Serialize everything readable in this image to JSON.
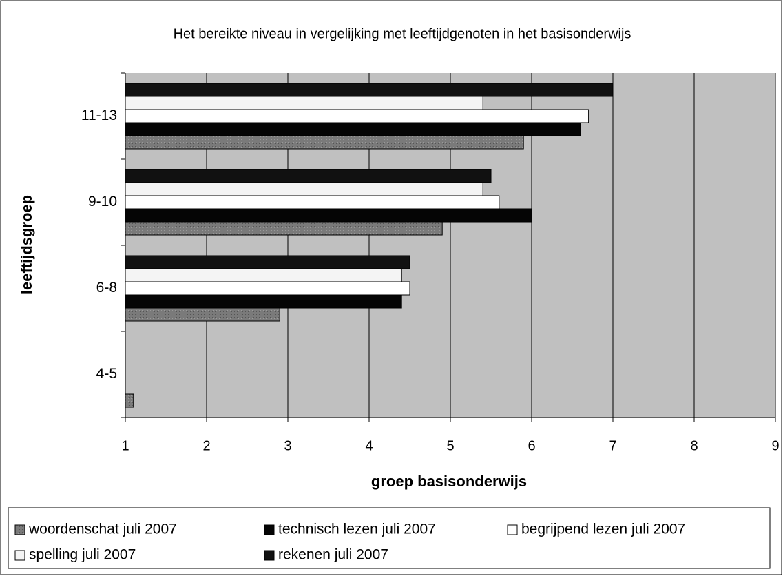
{
  "chart_data": {
    "type": "hbar",
    "title": "Het bereikte niveau in vergelijking met leeftijdgenoten in het basisonderwijs",
    "xlabel": "groep basisonderwijs",
    "ylabel": "leeftijdsgroep",
    "categories": [
      "4-5",
      "6-8",
      "9-10",
      "11-13"
    ],
    "series": [
      {
        "name": "woordenschat juli 2007",
        "color": "#7a7a7a",
        "values": [
          1.1,
          2.9,
          4.9,
          5.9
        ]
      },
      {
        "name": "technisch lezen juli 2007",
        "color": "#050505",
        "values": [
          null,
          4.4,
          6.0,
          6.6
        ]
      },
      {
        "name": "begrijpend lezen juli 2007",
        "color": "#ffffff",
        "values": [
          null,
          4.5,
          5.6,
          6.7
        ]
      },
      {
        "name": "spelling juli 2007",
        "color": "#f4f4f4",
        "values": [
          null,
          4.4,
          5.4,
          5.4
        ]
      },
      {
        "name": "rekenen juli 2007",
        "color": "#111111",
        "values": [
          null,
          4.5,
          5.5,
          7.0
        ]
      }
    ],
    "xlim": [
      1,
      9
    ],
    "xticks": [
      1,
      2,
      3,
      4,
      5,
      6,
      7,
      8,
      9
    ],
    "grid": true,
    "plot_background": "#c0c0c0",
    "legend": "bottom"
  }
}
